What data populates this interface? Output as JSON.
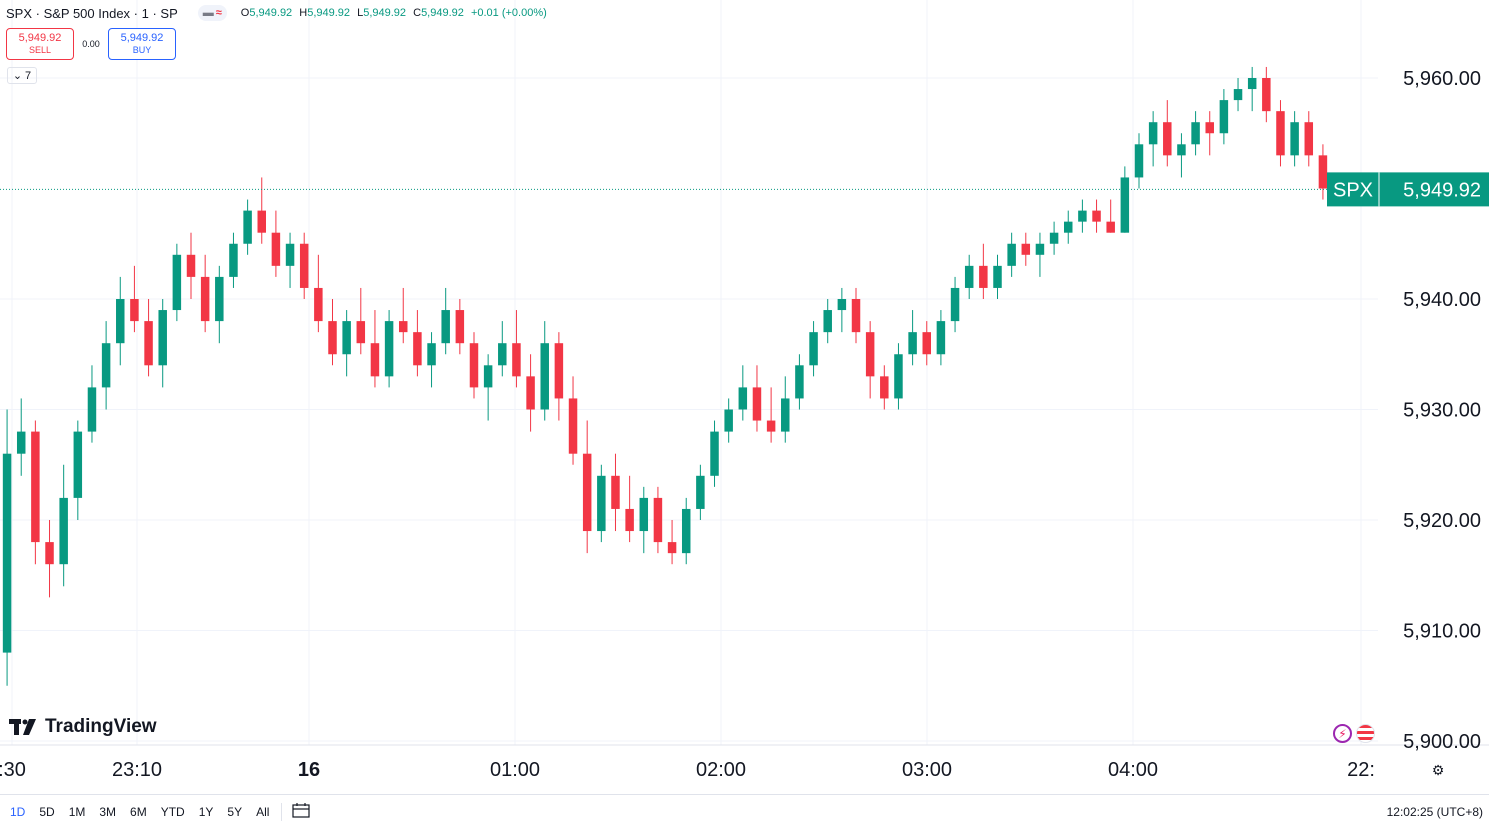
{
  "legend": {
    "title": "SPX · S&P 500 Index · 1 · SP",
    "open_label": "O",
    "open": "5,949.92",
    "high_label": "H",
    "high": "5,949.92",
    "low_label": "L",
    "low": "5,949.92",
    "close_label": "C",
    "close": "5,949.92",
    "change": "+0.01 (+0.00%)"
  },
  "trade": {
    "sell_price": "5,949.92",
    "sell_label": "SELL",
    "spread": "0.00",
    "buy_price": "5,949.92",
    "buy_label": "BUY"
  },
  "collapse_count": "7",
  "logo_text": "TradingView",
  "price_tag": {
    "symbol": "SPX",
    "price": "5,949.92"
  },
  "time_ranges": [
    "1D",
    "5D",
    "1M",
    "3M",
    "6M",
    "YTD",
    "1Y",
    "5Y",
    "All"
  ],
  "active_range": "1D",
  "clock": "12:02:25 (UTC+8)",
  "colors": {
    "up": "#089981",
    "down": "#f23645",
    "grid": "#f0f3fa",
    "price_line": "#089981",
    "accent": "#2962ff"
  },
  "icons": [
    "chevron-down-icon",
    "tradingview-logo-icon",
    "lightning-icon",
    "us-flag-icon",
    "calendar-icon",
    "gear-icon"
  ],
  "chart_data": {
    "type": "candlestick",
    "symbol": "SPX",
    "interval": "1",
    "ylim": [
      5900,
      5963
    ],
    "y_ticks": [
      {
        "value": 5960,
        "label": "5,960.00"
      },
      {
        "value": 5940,
        "label": "5,940.00"
      },
      {
        "value": 5930,
        "label": "5,930.00"
      },
      {
        "value": 5920,
        "label": "5,920.00"
      },
      {
        "value": 5910,
        "label": "5,910.00"
      },
      {
        "value": 5900,
        "label": "5,900.00"
      }
    ],
    "x_ticks": [
      ":30",
      "23:10",
      "16",
      "01:00",
      "02:00",
      "03:00",
      "04:00",
      "22:"
    ],
    "last_price": 5949.92,
    "candles": [
      [
        5908,
        5930,
        5905,
        5926
      ],
      [
        5926,
        5931,
        5924,
        5928
      ],
      [
        5928,
        5929,
        5916,
        5918
      ],
      [
        5918,
        5920,
        5913,
        5916
      ],
      [
        5916,
        5925,
        5914,
        5922
      ],
      [
        5922,
        5929,
        5920,
        5928
      ],
      [
        5928,
        5934,
        5927,
        5932
      ],
      [
        5932,
        5938,
        5930,
        5936
      ],
      [
        5936,
        5942,
        5934,
        5940
      ],
      [
        5940,
        5943,
        5937,
        5938
      ],
      [
        5938,
        5940,
        5933,
        5934
      ],
      [
        5934,
        5940,
        5932,
        5939
      ],
      [
        5939,
        5945,
        5938,
        5944
      ],
      [
        5944,
        5946,
        5940,
        5942
      ],
      [
        5942,
        5944,
        5937,
        5938
      ],
      [
        5938,
        5943,
        5936,
        5942
      ],
      [
        5942,
        5946,
        5941,
        5945
      ],
      [
        5945,
        5949,
        5944,
        5948
      ],
      [
        5948,
        5951,
        5945,
        5946
      ],
      [
        5946,
        5948,
        5942,
        5943
      ],
      [
        5943,
        5946,
        5941,
        5945
      ],
      [
        5945,
        5946,
        5940,
        5941
      ],
      [
        5941,
        5944,
        5937,
        5938
      ],
      [
        5938,
        5940,
        5934,
        5935
      ],
      [
        5935,
        5939,
        5933,
        5938
      ],
      [
        5938,
        5941,
        5935,
        5936
      ],
      [
        5936,
        5939,
        5932,
        5933
      ],
      [
        5933,
        5939,
        5932,
        5938
      ],
      [
        5938,
        5941,
        5936,
        5937
      ],
      [
        5937,
        5939,
        5933,
        5934
      ],
      [
        5934,
        5937,
        5932,
        5936
      ],
      [
        5936,
        5941,
        5935,
        5939
      ],
      [
        5939,
        5940,
        5935,
        5936
      ],
      [
        5936,
        5937,
        5931,
        5932
      ],
      [
        5932,
        5935,
        5929,
        5934
      ],
      [
        5934,
        5938,
        5933,
        5936
      ],
      [
        5936,
        5939,
        5932,
        5933
      ],
      [
        5933,
        5935,
        5928,
        5930
      ],
      [
        5930,
        5938,
        5929,
        5936
      ],
      [
        5936,
        5937,
        5929,
        5931
      ],
      [
        5931,
        5933,
        5925,
        5926
      ],
      [
        5926,
        5929,
        5917,
        5919
      ],
      [
        5919,
        5925,
        5918,
        5924
      ],
      [
        5924,
        5926,
        5919,
        5921
      ],
      [
        5921,
        5924,
        5918,
        5919
      ],
      [
        5919,
        5923,
        5917,
        5922
      ],
      [
        5922,
        5923,
        5917,
        5918
      ],
      [
        5918,
        5920,
        5916,
        5917
      ],
      [
        5917,
        5922,
        5916,
        5921
      ],
      [
        5921,
        5925,
        5920,
        5924
      ],
      [
        5924,
        5929,
        5923,
        5928
      ],
      [
        5928,
        5931,
        5927,
        5930
      ],
      [
        5930,
        5934,
        5929,
        5932
      ],
      [
        5932,
        5934,
        5928,
        5929
      ],
      [
        5929,
        5932,
        5927,
        5928
      ],
      [
        5928,
        5933,
        5927,
        5931
      ],
      [
        5931,
        5935,
        5930,
        5934
      ],
      [
        5934,
        5938,
        5933,
        5937
      ],
      [
        5937,
        5940,
        5936,
        5939
      ],
      [
        5939,
        5941,
        5937,
        5940
      ],
      [
        5940,
        5941,
        5936,
        5937
      ],
      [
        5937,
        5938,
        5931,
        5933
      ],
      [
        5933,
        5934,
        5930,
        5931
      ],
      [
        5931,
        5936,
        5930,
        5935
      ],
      [
        5935,
        5939,
        5934,
        5937
      ],
      [
        5937,
        5938,
        5934,
        5935
      ],
      [
        5935,
        5939,
        5934,
        5938
      ],
      [
        5938,
        5942,
        5937,
        5941
      ],
      [
        5941,
        5944,
        5940,
        5943
      ],
      [
        5943,
        5945,
        5940,
        5941
      ],
      [
        5941,
        5944,
        5940,
        5943
      ],
      [
        5943,
        5946,
        5942,
        5945
      ],
      [
        5945,
        5946,
        5943,
        5944
      ],
      [
        5944,
        5946,
        5942,
        5945
      ],
      [
        5945,
        5947,
        5944,
        5946
      ],
      [
        5946,
        5948,
        5945,
        5947
      ],
      [
        5947,
        5949,
        5946,
        5948
      ],
      [
        5948,
        5949,
        5946,
        5947
      ],
      [
        5947,
        5949,
        5946,
        5946
      ],
      [
        5946,
        5952,
        5946,
        5951
      ],
      [
        5951,
        5955,
        5950,
        5954
      ],
      [
        5954,
        5957,
        5952,
        5956
      ],
      [
        5956,
        5958,
        5952,
        5953
      ],
      [
        5953,
        5955,
        5951,
        5954
      ],
      [
        5954,
        5957,
        5953,
        5956
      ],
      [
        5956,
        5957,
        5953,
        5955
      ],
      [
        5955,
        5959,
        5954,
        5958
      ],
      [
        5958,
        5960,
        5957,
        5959
      ],
      [
        5959,
        5961,
        5957,
        5960
      ],
      [
        5960,
        5961,
        5956,
        5957
      ],
      [
        5957,
        5958,
        5952,
        5953
      ],
      [
        5953,
        5957,
        5952,
        5956
      ],
      [
        5956,
        5957,
        5952,
        5953
      ],
      [
        5953,
        5954,
        5949,
        5950
      ]
    ]
  }
}
